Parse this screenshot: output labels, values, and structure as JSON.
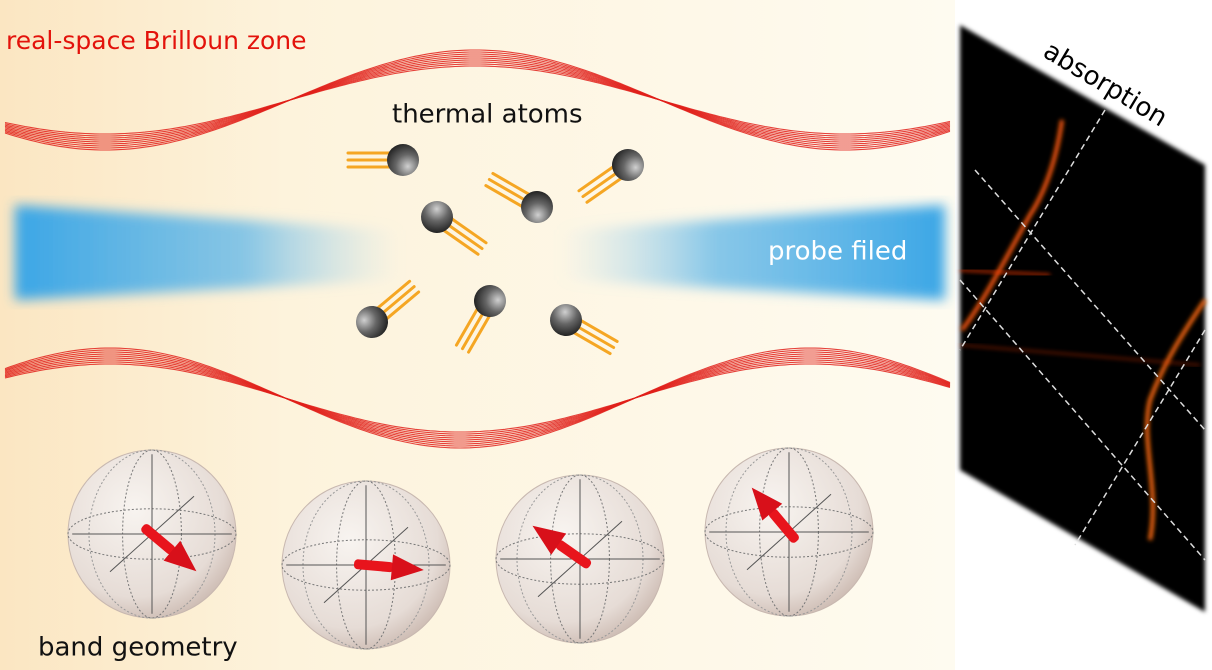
{
  "labels": {
    "title": "real-space Brilloun zone",
    "atoms": "thermal atoms",
    "probe": "probe filed",
    "absorption": "absorption",
    "geometry": "band geometry"
  }
}
